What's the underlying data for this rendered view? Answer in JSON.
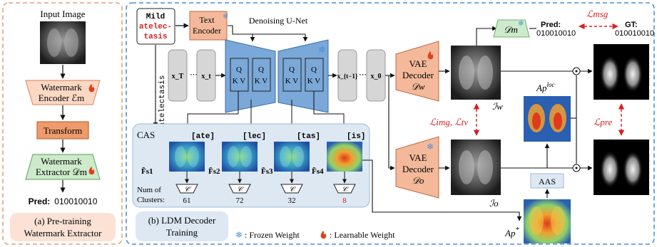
{
  "panel_a": {
    "input_label": "Input Image",
    "encoder": [
      "Watermark",
      "Encoder ℰm"
    ],
    "transform": "Transform",
    "extractor": [
      "Watermark",
      "Extractor 𝒟m"
    ],
    "pred_label": "Pred:",
    "pred_value": "010010010",
    "caption": [
      "(a) Pre-training",
      "Watermark Extractor"
    ]
  },
  "panel_b": {
    "prompt": [
      "Mild",
      "atelec-",
      "tasis"
    ],
    "text_encoder": [
      "Text",
      "Encoder"
    ],
    "unet_title": "Denoising U-Net",
    "token_vertical": "atelectasis",
    "latents": [
      "x_T",
      "x_t",
      "x_{t−1}",
      "x_0"
    ],
    "qkv": [
      "Q",
      "K V"
    ],
    "cas_label": "CAS",
    "tokens": [
      "[ate]",
      "[lec]",
      "[tas]",
      "[is]"
    ],
    "features": [
      "F̃s1",
      "F̃s2",
      "F̃s3",
      "F̃s4"
    ],
    "num_clusters_label": [
      "Num of",
      "Clusters:"
    ],
    "cluster_counts": [
      "61",
      "72",
      "32",
      "8"
    ],
    "cluster_symbol": "𝒞",
    "vae_w": [
      "VAE",
      "Decoder",
      "𝒟w"
    ],
    "vae_o": [
      "VAE",
      "Decoder",
      "𝒟o"
    ],
    "img_w": "ℐw",
    "img_o": "ℐo",
    "loss_img": "ℒimg, ℒtv",
    "loss_pre": "ℒpre",
    "loss_msg": "ℒmsg",
    "extractor_dm": "𝒟m",
    "pred_label": "Pred:",
    "pred_value": "010010010",
    "gt_label": "GT:",
    "gt_value": "010010010",
    "ap_loc": "Ap",
    "ap_loc_sup": "loc",
    "ap_star": "Ap",
    "ap_star_sup": "*",
    "aas": "AAS",
    "caption": [
      "(b) LDM Decoder",
      "Training"
    ],
    "legend_frozen": ": Frozen Weight",
    "legend_learn": ": Learnable Weight"
  },
  "colors": {
    "orange_fill": "#fbd8c4",
    "orange_stroke": "#e0926a",
    "green_fill": "#cdeacb",
    "green_stroke": "#6fb06a",
    "blue_fill": "#7aa8d8",
    "blue_stroke": "#3b6ea8",
    "gray_fill": "#d9d9d9",
    "cas_bg": "#dde8f3",
    "red": "#d62020",
    "flame": "#e0401c",
    "snow": "#4a90d9"
  }
}
